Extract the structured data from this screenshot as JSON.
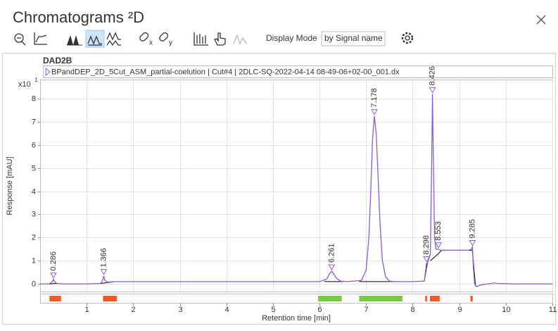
{
  "window": {
    "title": "Chromatograms ²D"
  },
  "toolbar": {
    "display_mode_label": "Display Mode",
    "display_mode_value": "by Signal name"
  },
  "chart_data": {
    "type": "line",
    "panel_title": "DAD2B",
    "y_multiplier": {
      "base": "x10",
      "exponent": "1"
    },
    "ylabel": "Response [mAU]",
    "xlabel": "Retention time [min]",
    "xlim": [
      0,
      11
    ],
    "ylim": [
      -0.33,
      8.82
    ],
    "xticks": [
      1,
      2,
      3,
      4,
      5,
      6,
      7,
      8,
      9,
      10,
      11
    ],
    "yticks": [
      0,
      1,
      2,
      3,
      4,
      5,
      6,
      7,
      8
    ],
    "grid": true,
    "series": [
      {
        "name": "BPandDEP_2D_5Cut_ASM_partial-coelution | Cut#4 | 2DLC-SQ-2022-04-14 08-49-06+02-00_001.dx",
        "color": "#8a5cd6",
        "x": [
          0,
          0.2,
          0.26,
          0.286,
          0.31,
          0.36,
          0.5,
          1.0,
          1.3,
          1.34,
          1.366,
          1.39,
          1.45,
          1.6,
          2,
          3,
          4,
          5,
          6,
          6.15,
          6.22,
          6.261,
          6.3,
          6.36,
          6.45,
          6.6,
          6.9,
          7.0,
          7.06,
          7.1,
          7.14,
          7.178,
          7.22,
          7.26,
          7.3,
          7.35,
          7.42,
          7.5,
          7.6,
          8.0,
          8.25,
          8.28,
          8.298,
          8.32,
          8.38,
          8.41,
          8.426,
          8.44,
          8.47,
          8.5,
          8.553,
          8.6,
          8.8,
          9.0,
          9.2,
          9.26,
          9.285,
          9.3,
          9.33,
          9.38,
          9.45,
          9.6,
          9.7,
          9.75,
          9.8,
          10.2,
          11
        ],
        "values": [
          0,
          0,
          0.1,
          0.2,
          0.1,
          0.02,
          0,
          0,
          0.02,
          0.15,
          0.35,
          0.15,
          0.08,
          0.1,
          0.1,
          0.1,
          0.1,
          0.1,
          0.1,
          0.2,
          0.45,
          0.55,
          0.45,
          0.25,
          0.12,
          0.1,
          0.15,
          0.6,
          2.0,
          4.0,
          6.3,
          7.25,
          6.4,
          4.5,
          2.6,
          1.0,
          0.3,
          0.12,
          0.1,
          0.1,
          0.12,
          0.6,
          0.9,
          0.9,
          1.3,
          5.5,
          8.2,
          6.0,
          2.0,
          1.5,
          1.5,
          1.45,
          1.45,
          1.45,
          1.45,
          1.5,
          1.6,
          0.8,
          0.0,
          -0.12,
          -0.05,
          0.0,
          0.02,
          0.05,
          0.02,
          0,
          0
        ]
      }
    ],
    "peaks": {
      "x": [
        0.286,
        1.366,
        6.261,
        7.178,
        8.298,
        8.426,
        8.553,
        9.285
      ],
      "y": [
        0.2,
        0.35,
        0.55,
        7.25,
        0.9,
        8.2,
        1.5,
        1.6
      ]
    },
    "baselines": [
      {
        "x": [
          0.2,
          0.36
        ],
        "values": [
          0,
          0.02
        ]
      },
      {
        "x": [
          1.3,
          1.6
        ],
        "values": [
          0.02,
          0.1
        ]
      },
      {
        "x": [
          6.1,
          6.5
        ],
        "values": [
          0.1,
          0.1
        ]
      },
      {
        "x": [
          6.85,
          7.7
        ],
        "values": [
          0.1,
          0.1
        ]
      },
      {
        "x": [
          8.25,
          8.32
        ],
        "values": [
          0.12,
          0.95
        ]
      },
      {
        "x": [
          8.38,
          8.55,
          8.62
        ],
        "values": [
          1.0,
          1.3,
          1.45
        ]
      },
      {
        "x": [
          8.62,
          9.28,
          9.35
        ],
        "values": [
          1.45,
          1.45,
          -0.1
        ]
      }
    ],
    "fractions": [
      {
        "start": 0.2,
        "end": 0.45,
        "color": "#f05a2a"
      },
      {
        "start": 1.35,
        "end": 1.65,
        "color": "#f05a2a"
      },
      {
        "start": 5.97,
        "end": 6.48,
        "color": "#7ac943"
      },
      {
        "start": 6.85,
        "end": 7.78,
        "color": "#7ac943"
      },
      {
        "start": 8.27,
        "end": 8.31,
        "color": "#f05a2a"
      },
      {
        "start": 8.37,
        "end": 8.58,
        "color": "#f05a2a"
      },
      {
        "start": 9.24,
        "end": 9.29,
        "color": "#f05a2a"
      }
    ]
  }
}
